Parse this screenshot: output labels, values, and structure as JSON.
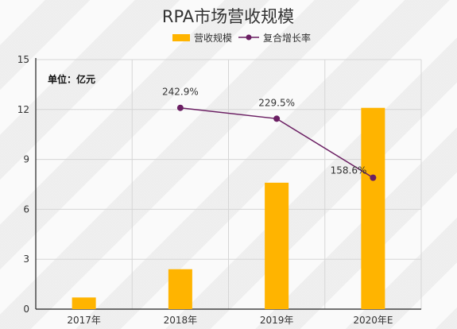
{
  "chart_data": {
    "type": "bar",
    "title": "RPA市场营收规模",
    "unit_label": "单位：亿元",
    "categories": [
      "2017年",
      "2018年",
      "2019年",
      "2020年E"
    ],
    "ylim": [
      0,
      15
    ],
    "yticks": [
      0,
      3,
      6,
      9,
      12,
      15
    ],
    "series": [
      {
        "name": "营收规模",
        "type": "bar",
        "color": "#ffb400",
        "values": [
          0.7,
          2.4,
          7.6,
          12.1
        ]
      }
    ],
    "line_series": {
      "name": "复合增长率",
      "type": "line",
      "color": "#6b1f63",
      "points": [
        {
          "category": "2018年",
          "y": 12.1,
          "label": "242.9%"
        },
        {
          "category": "2019年",
          "y": 11.45,
          "label": "229.5%"
        },
        {
          "category": "2020年E",
          "y": 7.9,
          "label": "158.6%"
        }
      ]
    },
    "grid": true,
    "legend": "top-center"
  }
}
